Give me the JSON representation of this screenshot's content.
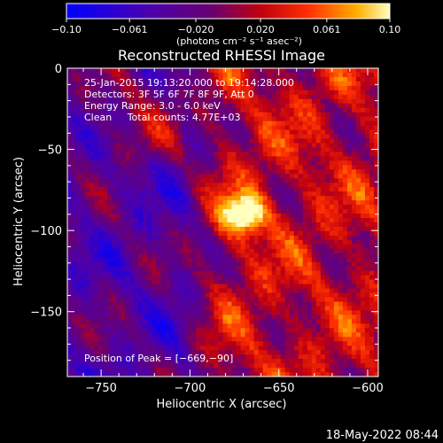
{
  "colorbar": {
    "ticks": [
      "-0.10",
      "-0.061",
      "-0.020",
      "0.020",
      "0.061",
      "0.10"
    ],
    "tick_values": [
      -0.1,
      -0.061,
      -0.02,
      0.02,
      0.061,
      0.1
    ],
    "range": [
      -0.1,
      0.1
    ],
    "units": "(photons cm⁻² s⁻¹ asec⁻²)"
  },
  "chart_data": {
    "type": "heatmap",
    "title": "Reconstructed RHESSI Image",
    "xlabel": "Heliocentric X (arcsec)",
    "ylabel": "Heliocentric Y (arcsec)",
    "xlim": [
      -769,
      -594
    ],
    "ylim": [
      -190,
      0
    ],
    "xticks": [
      -750,
      -700,
      -650,
      -600
    ],
    "xtick_labels": [
      "−750",
      "−700",
      "−650",
      "−600"
    ],
    "yticks": [
      0,
      -50,
      -100,
      -150
    ],
    "ytick_labels": [
      "0",
      "−50",
      "−100",
      "−150"
    ],
    "peak": {
      "x": -669,
      "y": -90
    },
    "annotations": [
      "25-Jan-2015 19:13:20.000 to 19:14:28.000",
      "Detectors: 3F 5F 6F 7F 8F 9F, Att 0",
      "Energy Range: 3.0 - 6.0 keV",
      "Clean     Total counts: 4.77E+03"
    ],
    "peak_label": "Position of Peak = [−669,−90]"
  },
  "footer": {
    "timestamp": "18-May-2022 08:44"
  }
}
